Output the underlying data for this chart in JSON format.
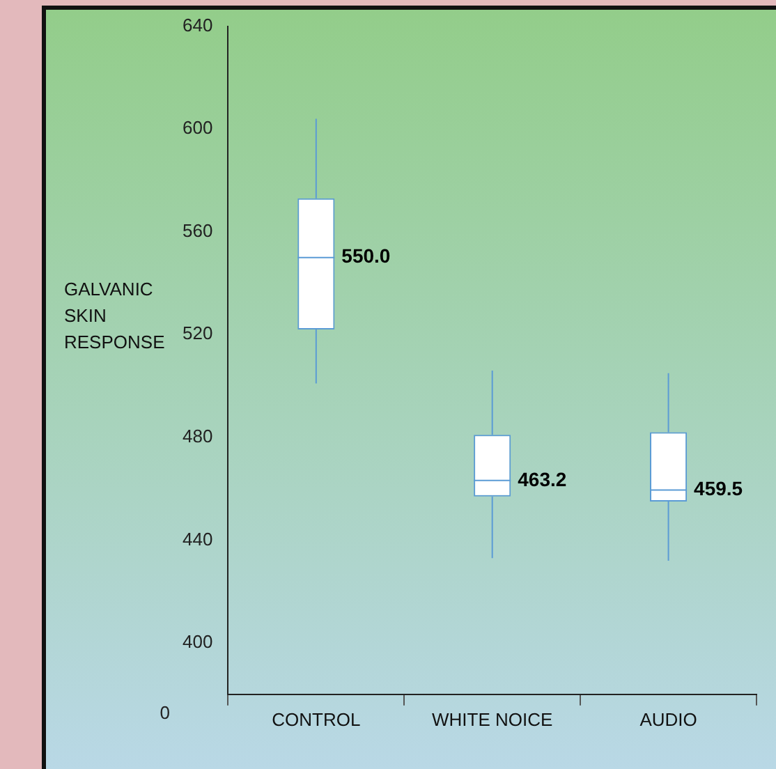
{
  "chart_data": {
    "type": "box",
    "ylabel": "GALVANIC SKIN RESPONSE",
    "categories": [
      "CONTROL",
      "WHITE NOICE",
      "AUDIO"
    ],
    "color": "#5b9bd5",
    "boxes": [
      {
        "low": 501,
        "q1": 522,
        "median": 550.0,
        "q3": 573,
        "high": 604
      },
      {
        "low": 433,
        "q1": 457,
        "median": 463.2,
        "q3": 481,
        "high": 506
      },
      {
        "low": 432,
        "q1": 455,
        "median": 459.5,
        "q3": 482,
        "high": 505
      }
    ],
    "value_labels": [
      "550.0",
      "463.2",
      "459.5"
    ],
    "annotations": [
      "0"
    ],
    "ylim": [
      380,
      640
    ],
    "yticks": [
      400,
      440,
      480,
      520,
      560,
      600,
      640
    ]
  }
}
